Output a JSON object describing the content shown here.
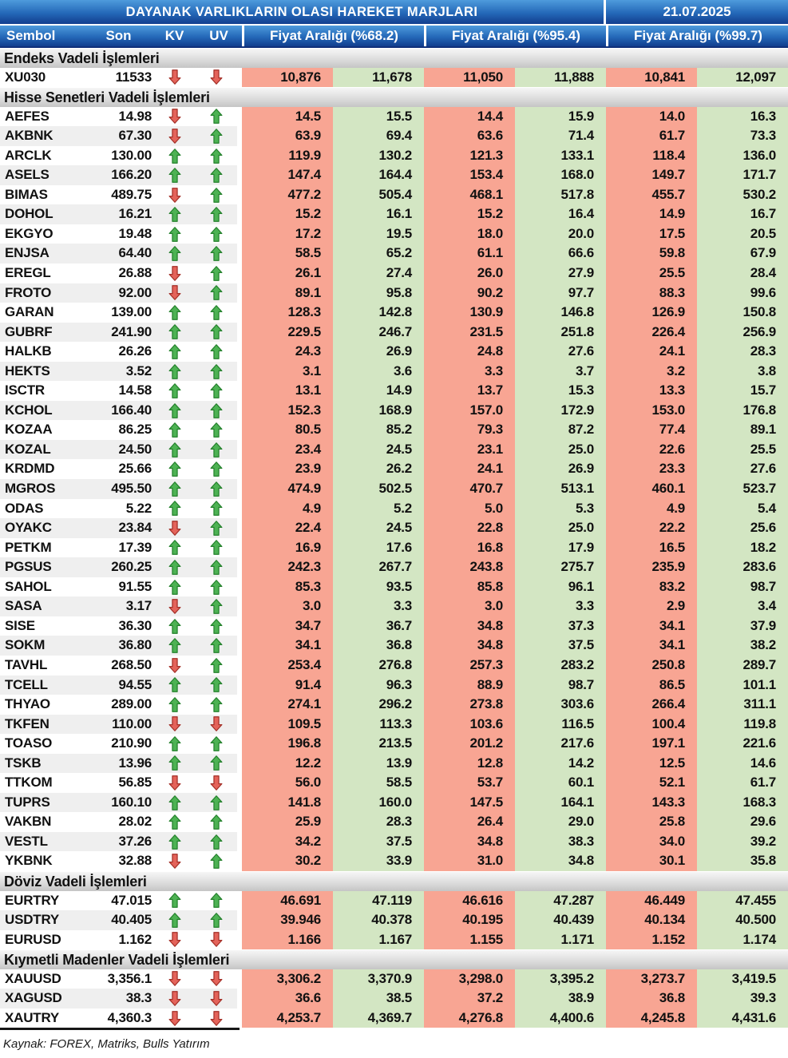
{
  "header": {
    "title": "DAYANAK VARLIKLARIN OLASI HAREKET MARJLARI",
    "date": "21.07.2025",
    "columns": {
      "symbol": "Sembol",
      "last": "Son",
      "kv": "KV",
      "uv": "UV",
      "range_68": "Fiyat Aralığı (%68.2)",
      "range_95": "Fiyat Aralığı (%95.4)",
      "range_99": "Fiyat Aralığı (%99.7)"
    }
  },
  "colors": {
    "header_blue_top": "#4E9BDC",
    "header_blue_bottom": "#123E8E",
    "low_cell": "#F8A593",
    "high_cell": "#D3E6C3",
    "stripe": "#EFEFEF",
    "up_arrow_fill": "#4DB253",
    "up_arrow_stroke": "#23802B",
    "down_arrow_fill": "#E4635A",
    "down_arrow_stroke": "#A32F27"
  },
  "sections": [
    {
      "title": "Endeks Vadeli İşlemleri",
      "rows": [
        {
          "symbol": "XU030",
          "last": "11533",
          "kv": "down",
          "uv": "down",
          "ranges": [
            "10,876",
            "11,678",
            "11,050",
            "11,888",
            "10,841",
            "12,097"
          ]
        }
      ]
    },
    {
      "title": "Hisse Senetleri Vadeli İşlemleri",
      "rows": [
        {
          "symbol": "AEFES",
          "last": "14.98",
          "kv": "down",
          "uv": "up",
          "ranges": [
            "14.5",
            "15.5",
            "14.4",
            "15.9",
            "14.0",
            "16.3"
          ]
        },
        {
          "symbol": "AKBNK",
          "last": "67.30",
          "kv": "down",
          "uv": "up",
          "ranges": [
            "63.9",
            "69.4",
            "63.6",
            "71.4",
            "61.7",
            "73.3"
          ]
        },
        {
          "symbol": "ARCLK",
          "last": "130.00",
          "kv": "up",
          "uv": "up",
          "ranges": [
            "119.9",
            "130.2",
            "121.3",
            "133.1",
            "118.4",
            "136.0"
          ]
        },
        {
          "symbol": "ASELS",
          "last": "166.20",
          "kv": "up",
          "uv": "up",
          "ranges": [
            "147.4",
            "164.4",
            "153.4",
            "168.0",
            "149.7",
            "171.7"
          ]
        },
        {
          "symbol": "BIMAS",
          "last": "489.75",
          "kv": "down",
          "uv": "up",
          "ranges": [
            "477.2",
            "505.4",
            "468.1",
            "517.8",
            "455.7",
            "530.2"
          ]
        },
        {
          "symbol": "DOHOL",
          "last": "16.21",
          "kv": "up",
          "uv": "up",
          "ranges": [
            "15.2",
            "16.1",
            "15.2",
            "16.4",
            "14.9",
            "16.7"
          ]
        },
        {
          "symbol": "EKGYO",
          "last": "19.48",
          "kv": "up",
          "uv": "up",
          "ranges": [
            "17.2",
            "19.5",
            "18.0",
            "20.0",
            "17.5",
            "20.5"
          ]
        },
        {
          "symbol": "ENJSA",
          "last": "64.40",
          "kv": "up",
          "uv": "up",
          "ranges": [
            "58.5",
            "65.2",
            "61.1",
            "66.6",
            "59.8",
            "67.9"
          ]
        },
        {
          "symbol": "EREGL",
          "last": "26.88",
          "kv": "down",
          "uv": "up",
          "ranges": [
            "26.1",
            "27.4",
            "26.0",
            "27.9",
            "25.5",
            "28.4"
          ]
        },
        {
          "symbol": "FROTO",
          "last": "92.00",
          "kv": "down",
          "uv": "up",
          "ranges": [
            "89.1",
            "95.8",
            "90.2",
            "97.7",
            "88.3",
            "99.6"
          ]
        },
        {
          "symbol": "GARAN",
          "last": "139.00",
          "kv": "up",
          "uv": "up",
          "ranges": [
            "128.3",
            "142.8",
            "130.9",
            "146.8",
            "126.9",
            "150.8"
          ]
        },
        {
          "symbol": "GUBRF",
          "last": "241.90",
          "kv": "up",
          "uv": "up",
          "ranges": [
            "229.5",
            "246.7",
            "231.5",
            "251.8",
            "226.4",
            "256.9"
          ]
        },
        {
          "symbol": "HALKB",
          "last": "26.26",
          "kv": "up",
          "uv": "up",
          "ranges": [
            "24.3",
            "26.9",
            "24.8",
            "27.6",
            "24.1",
            "28.3"
          ]
        },
        {
          "symbol": "HEKTS",
          "last": "3.52",
          "kv": "up",
          "uv": "up",
          "ranges": [
            "3.1",
            "3.6",
            "3.3",
            "3.7",
            "3.2",
            "3.8"
          ]
        },
        {
          "symbol": "ISCTR",
          "last": "14.58",
          "kv": "up",
          "uv": "up",
          "ranges": [
            "13.1",
            "14.9",
            "13.7",
            "15.3",
            "13.3",
            "15.7"
          ]
        },
        {
          "symbol": "KCHOL",
          "last": "166.40",
          "kv": "up",
          "uv": "up",
          "ranges": [
            "152.3",
            "168.9",
            "157.0",
            "172.9",
            "153.0",
            "176.8"
          ]
        },
        {
          "symbol": "KOZAA",
          "last": "86.25",
          "kv": "up",
          "uv": "up",
          "ranges": [
            "80.5",
            "85.2",
            "79.3",
            "87.2",
            "77.4",
            "89.1"
          ]
        },
        {
          "symbol": "KOZAL",
          "last": "24.50",
          "kv": "up",
          "uv": "up",
          "ranges": [
            "23.4",
            "24.5",
            "23.1",
            "25.0",
            "22.6",
            "25.5"
          ]
        },
        {
          "symbol": "KRDMD",
          "last": "25.66",
          "kv": "up",
          "uv": "up",
          "ranges": [
            "23.9",
            "26.2",
            "24.1",
            "26.9",
            "23.3",
            "27.6"
          ]
        },
        {
          "symbol": "MGROS",
          "last": "495.50",
          "kv": "up",
          "uv": "up",
          "ranges": [
            "474.9",
            "502.5",
            "470.7",
            "513.1",
            "460.1",
            "523.7"
          ]
        },
        {
          "symbol": "ODAS",
          "last": "5.22",
          "kv": "up",
          "uv": "up",
          "ranges": [
            "4.9",
            "5.2",
            "5.0",
            "5.3",
            "4.9",
            "5.4"
          ]
        },
        {
          "symbol": "OYAKC",
          "last": "23.84",
          "kv": "down",
          "uv": "up",
          "ranges": [
            "22.4",
            "24.5",
            "22.8",
            "25.0",
            "22.2",
            "25.6"
          ]
        },
        {
          "symbol": "PETKM",
          "last": "17.39",
          "kv": "up",
          "uv": "up",
          "ranges": [
            "16.9",
            "17.6",
            "16.8",
            "17.9",
            "16.5",
            "18.2"
          ]
        },
        {
          "symbol": "PGSUS",
          "last": "260.25",
          "kv": "up",
          "uv": "up",
          "ranges": [
            "242.3",
            "267.7",
            "243.8",
            "275.7",
            "235.9",
            "283.6"
          ]
        },
        {
          "symbol": "SAHOL",
          "last": "91.55",
          "kv": "up",
          "uv": "up",
          "ranges": [
            "85.3",
            "93.5",
            "85.8",
            "96.1",
            "83.2",
            "98.7"
          ]
        },
        {
          "symbol": "SASA",
          "last": "3.17",
          "kv": "down",
          "uv": "up",
          "ranges": [
            "3.0",
            "3.3",
            "3.0",
            "3.3",
            "2.9",
            "3.4"
          ]
        },
        {
          "symbol": "SISE",
          "last": "36.30",
          "kv": "up",
          "uv": "up",
          "ranges": [
            "34.7",
            "36.7",
            "34.8",
            "37.3",
            "34.1",
            "37.9"
          ]
        },
        {
          "symbol": "SOKM",
          "last": "36.80",
          "kv": "up",
          "uv": "up",
          "ranges": [
            "34.1",
            "36.8",
            "34.8",
            "37.5",
            "34.1",
            "38.2"
          ]
        },
        {
          "symbol": "TAVHL",
          "last": "268.50",
          "kv": "down",
          "uv": "up",
          "ranges": [
            "253.4",
            "276.8",
            "257.3",
            "283.2",
            "250.8",
            "289.7"
          ]
        },
        {
          "symbol": "TCELL",
          "last": "94.55",
          "kv": "up",
          "uv": "up",
          "ranges": [
            "91.4",
            "96.3",
            "88.9",
            "98.7",
            "86.5",
            "101.1"
          ]
        },
        {
          "symbol": "THYAO",
          "last": "289.00",
          "kv": "up",
          "uv": "up",
          "ranges": [
            "274.1",
            "296.2",
            "273.8",
            "303.6",
            "266.4",
            "311.1"
          ]
        },
        {
          "symbol": "TKFEN",
          "last": "110.00",
          "kv": "down",
          "uv": "down",
          "ranges": [
            "109.5",
            "113.3",
            "103.6",
            "116.5",
            "100.4",
            "119.8"
          ]
        },
        {
          "symbol": "TOASO",
          "last": "210.90",
          "kv": "up",
          "uv": "up",
          "ranges": [
            "196.8",
            "213.5",
            "201.2",
            "217.6",
            "197.1",
            "221.6"
          ]
        },
        {
          "symbol": "TSKB",
          "last": "13.96",
          "kv": "up",
          "uv": "up",
          "ranges": [
            "12.2",
            "13.9",
            "12.8",
            "14.2",
            "12.5",
            "14.6"
          ]
        },
        {
          "symbol": "TTKOM",
          "last": "56.85",
          "kv": "down",
          "uv": "down",
          "ranges": [
            "56.0",
            "58.5",
            "53.7",
            "60.1",
            "52.1",
            "61.7"
          ]
        },
        {
          "symbol": "TUPRS",
          "last": "160.10",
          "kv": "up",
          "uv": "up",
          "ranges": [
            "141.8",
            "160.0",
            "147.5",
            "164.1",
            "143.3",
            "168.3"
          ]
        },
        {
          "symbol": "VAKBN",
          "last": "28.02",
          "kv": "up",
          "uv": "up",
          "ranges": [
            "25.9",
            "28.3",
            "26.4",
            "29.0",
            "25.8",
            "29.6"
          ]
        },
        {
          "symbol": "VESTL",
          "last": "37.26",
          "kv": "up",
          "uv": "up",
          "ranges": [
            "34.2",
            "37.5",
            "34.8",
            "38.3",
            "34.0",
            "39.2"
          ]
        },
        {
          "symbol": "YKBNK",
          "last": "32.88",
          "kv": "down",
          "uv": "up",
          "ranges": [
            "30.2",
            "33.9",
            "31.0",
            "34.8",
            "30.1",
            "35.8"
          ]
        }
      ]
    },
    {
      "title": "Döviz Vadeli İşlemleri",
      "rows": [
        {
          "symbol": "EURTRY",
          "last": "47.015",
          "kv": "up",
          "uv": "up",
          "ranges": [
            "46.691",
            "47.119",
            "46.616",
            "47.287",
            "46.449",
            "47.455"
          ]
        },
        {
          "symbol": "USDTRY",
          "last": "40.405",
          "kv": "up",
          "uv": "up",
          "ranges": [
            "39.946",
            "40.378",
            "40.195",
            "40.439",
            "40.134",
            "40.500"
          ]
        },
        {
          "symbol": "EURUSD",
          "last": "1.162",
          "kv": "down",
          "uv": "down",
          "ranges": [
            "1.166",
            "1.167",
            "1.155",
            "1.171",
            "1.152",
            "1.174"
          ]
        }
      ]
    },
    {
      "title": "Kıymetli Madenler Vadeli İşlemleri",
      "rows": [
        {
          "symbol": "XAUUSD",
          "last": "3,356.1",
          "kv": "down",
          "uv": "down",
          "ranges": [
            "3,306.2",
            "3,370.9",
            "3,298.0",
            "3,395.2",
            "3,273.7",
            "3,419.5"
          ]
        },
        {
          "symbol": "XAGUSD",
          "last": "38.3",
          "kv": "down",
          "uv": "down",
          "ranges": [
            "36.6",
            "38.5",
            "37.2",
            "38.9",
            "36.8",
            "39.3"
          ]
        },
        {
          "symbol": "XAUTRY",
          "last": "4,360.3",
          "kv": "down",
          "uv": "down",
          "ranges": [
            "4,253.7",
            "4,369.7",
            "4,276.8",
            "4,400.6",
            "4,245.8",
            "4,431.6"
          ]
        }
      ]
    }
  ],
  "footer": {
    "source": "Kaynak: FOREX, Matriks, Bulls Yatırım"
  }
}
